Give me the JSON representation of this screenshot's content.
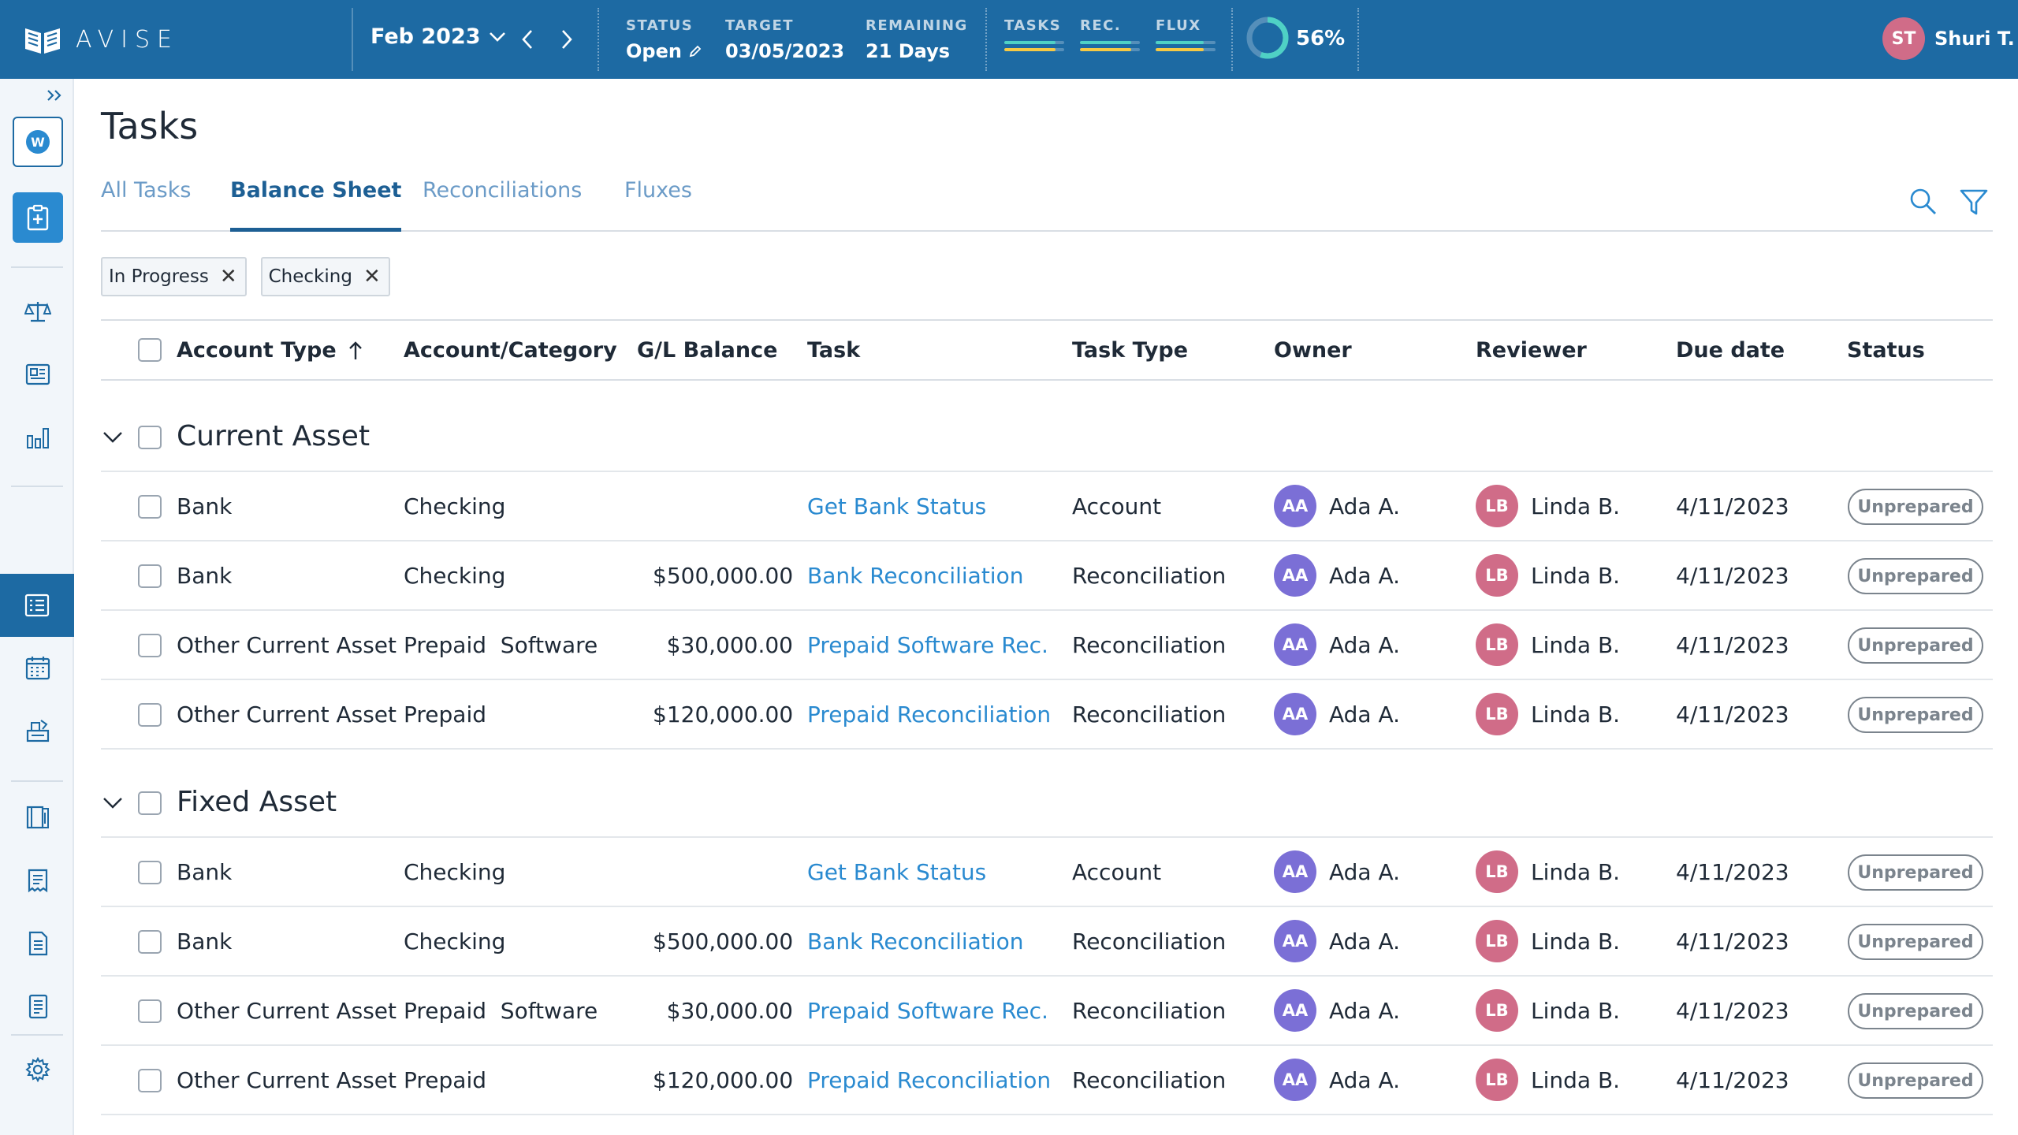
{
  "app": {
    "brand": "AVISE"
  },
  "header": {
    "period": "Feb 2023",
    "stats": [
      {
        "label": "STATUS",
        "value": "Open"
      },
      {
        "label": "TARGET",
        "value": "03/05/2023"
      },
      {
        "label": "REMAINING",
        "value": "21 Days"
      }
    ],
    "meters": [
      {
        "label": "TASKS",
        "fill": 0.85
      },
      {
        "label": "REC.",
        "fill": 0.85
      },
      {
        "label": "FLUX",
        "fill": 0.8
      }
    ],
    "completion": {
      "percent": 56,
      "label": "56%"
    },
    "user": {
      "initials": "ST",
      "name": "Shuri T."
    }
  },
  "sidebar": {
    "workspace_letter": "W",
    "icons": [
      "clipboard-plus-icon",
      "scale-icon",
      "newspaper-icon",
      "bar-chart-icon",
      "task-list-icon",
      "calendar-icon",
      "inventory-icon",
      "ledger-book-icon",
      "receipt-icon",
      "report-icon",
      "document-icon",
      "gear-icon",
      "quickbooks-icon"
    ],
    "active": "task-list-icon"
  },
  "page": {
    "title": "Tasks",
    "tabs": [
      {
        "label": "All Tasks",
        "active": false
      },
      {
        "label": "Balance Sheet",
        "active": true
      },
      {
        "label": "Reconciliations",
        "active": false
      },
      {
        "label": "Fluxes",
        "active": false
      }
    ],
    "filters": [
      {
        "label": "In Progress"
      },
      {
        "label": "Checking"
      }
    ]
  },
  "table": {
    "columns": [
      "Account Type",
      "Account/Category",
      "G/L Balance",
      "Task",
      "Task Type",
      "Owner",
      "Reviewer",
      "Due date",
      "Status"
    ],
    "groups": [
      {
        "title": "Current Asset",
        "rows": [
          {
            "account_type": "Bank",
            "category": "Checking",
            "balance": "",
            "task": "Get Bank Status",
            "task_type": "Account",
            "owner_initials": "AA",
            "owner": "Ada A.",
            "reviewer_initials": "LB",
            "reviewer": "Linda B.",
            "due": "4/11/2023",
            "status": "Unprepared"
          },
          {
            "account_type": "Bank",
            "category": "Checking",
            "balance": "$500,000.00",
            "task": "Bank Reconciliation",
            "task_type": "Reconciliation",
            "owner_initials": "AA",
            "owner": "Ada A.",
            "reviewer_initials": "LB",
            "reviewer": "Linda B.",
            "due": "4/11/2023",
            "status": "Unprepared"
          },
          {
            "account_type": "Other Current Asset",
            "category": "Prepaid  Software",
            "balance": "$30,000.00",
            "task": "Prepaid Software Rec.",
            "task_type": "Reconciliation",
            "owner_initials": "AA",
            "owner": "Ada A.",
            "reviewer_initials": "LB",
            "reviewer": "Linda B.",
            "due": "4/11/2023",
            "status": "Unprepared"
          },
          {
            "account_type": "Other Current Asset",
            "category": "Prepaid",
            "balance": "$120,000.00",
            "task": "Prepaid Reconciliation",
            "task_type": "Reconciliation",
            "owner_initials": "AA",
            "owner": "Ada A.",
            "reviewer_initials": "LB",
            "reviewer": "Linda B.",
            "due": "4/11/2023",
            "status": "Unprepared"
          }
        ]
      },
      {
        "title": "Fixed Asset",
        "rows": [
          {
            "account_type": "Bank",
            "category": "Checking",
            "balance": "",
            "task": "Get Bank Status",
            "task_type": "Account",
            "owner_initials": "AA",
            "owner": "Ada A.",
            "reviewer_initials": "LB",
            "reviewer": "Linda B.",
            "due": "4/11/2023",
            "status": "Unprepared"
          },
          {
            "account_type": "Bank",
            "category": "Checking",
            "balance": "$500,000.00",
            "task": "Bank Reconciliation",
            "task_type": "Reconciliation",
            "owner_initials": "AA",
            "owner": "Ada A.",
            "reviewer_initials": "LB",
            "reviewer": "Linda B.",
            "due": "4/11/2023",
            "status": "Unprepared"
          },
          {
            "account_type": "Other Current Asset",
            "category": "Prepaid  Software",
            "balance": "$30,000.00",
            "task": "Prepaid Software Rec.",
            "task_type": "Reconciliation",
            "owner_initials": "AA",
            "owner": "Ada A.",
            "reviewer_initials": "LB",
            "reviewer": "Linda B.",
            "due": "4/11/2023",
            "status": "Unprepared"
          },
          {
            "account_type": "Other Current Asset",
            "category": "Prepaid",
            "balance": "$120,000.00",
            "task": "Prepaid Reconciliation",
            "task_type": "Reconciliation",
            "owner_initials": "AA",
            "owner": "Ada A.",
            "reviewer_initials": "LB",
            "reviewer": "Linda B.",
            "due": "4/11/2023",
            "status": "Unprepared"
          }
        ]
      }
    ]
  },
  "colors": {
    "header_bg": "#1d6aa3",
    "link": "#2a8ad0",
    "owner_avatar": "#7b6fd6",
    "reviewer_avatar": "#d06c88",
    "meter_teal": "#4fd1c5",
    "meter_yellow": "#f6c944",
    "donut_teal": "#4fd1c5"
  }
}
